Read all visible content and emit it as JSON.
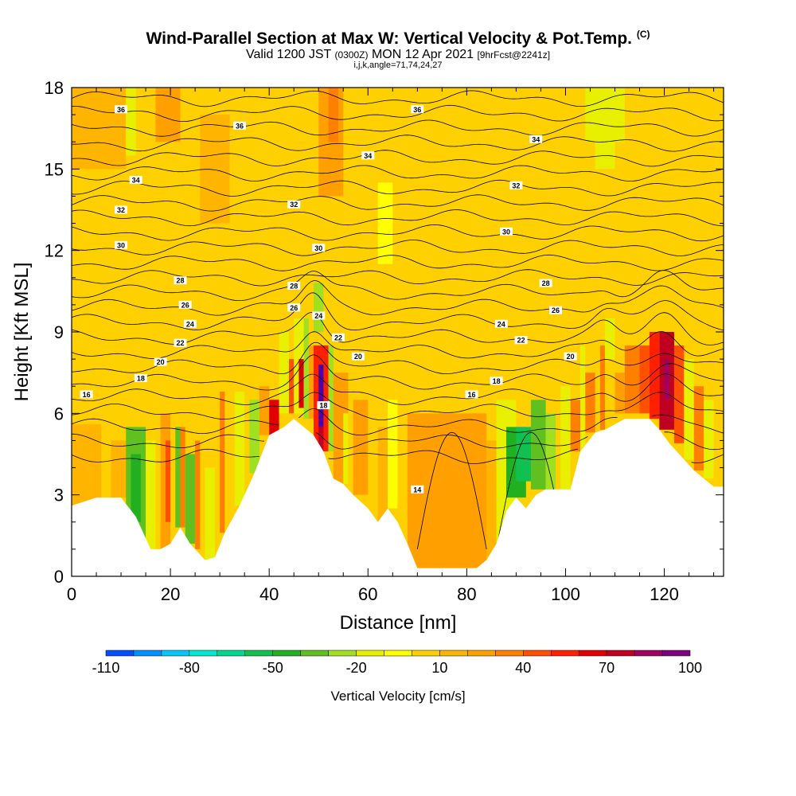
{
  "chart_data": {
    "type": "heatmap",
    "title": "Wind-Parallel Section at Max W: Vertical Velocity & Pot.Temp.",
    "title_tag": "(C)",
    "subtitle_main": "Valid 1200 JST",
    "subtitle_utc": "(0300Z)",
    "subtitle_date": "MON 12 Apr 2021",
    "subtitle_fcst": "[9hrFcst@2241z]",
    "subtitle2": "i,j,k,angle=71,74,24,27",
    "xlabel": "Distance [nm]",
    "ylabel": "Height [Kft MSL]",
    "xlim": [
      0,
      132
    ],
    "ylim": [
      0,
      18
    ],
    "x_ticks": [
      "0",
      "20",
      "40",
      "60",
      "80",
      "100",
      "120"
    ],
    "y_ticks": [
      "0",
      "3",
      "6",
      "9",
      "12",
      "15",
      "18"
    ],
    "colorbar": {
      "title": "Vertical Velocity [cm/s]",
      "tick_labels": [
        "-110",
        "-80",
        "-50",
        "-20",
        "10",
        "40",
        "70",
        "100"
      ],
      "colors": [
        "#0000ff",
        "#0050ff",
        "#0090ff",
        "#00c8ff",
        "#00e8d0",
        "#00d890",
        "#10c050",
        "#20b020",
        "#60c020",
        "#a0e020",
        "#e8f000",
        "#ffff00",
        "#ffd000",
        "#ffb400",
        "#ffa000",
        "#ff8000",
        "#ff5000",
        "#ff2000",
        "#e00000",
        "#c00020",
        "#a00060",
        "#800080",
        "#5000a0"
      ]
    },
    "terrain": [
      [
        0,
        2.6
      ],
      [
        5,
        2.9
      ],
      [
        10,
        2.9
      ],
      [
        13,
        2.2
      ],
      [
        16,
        1.0
      ],
      [
        18,
        1.0
      ],
      [
        20,
        1.2
      ],
      [
        22,
        1.8
      ],
      [
        24,
        1.2
      ],
      [
        25,
        1.0
      ],
      [
        27,
        0.6
      ],
      [
        29,
        0.7
      ],
      [
        31,
        1.6
      ],
      [
        34,
        2.6
      ],
      [
        37,
        3.8
      ],
      [
        40,
        5.2
      ],
      [
        43,
        5.5
      ],
      [
        45,
        5.8
      ],
      [
        47,
        5.5
      ],
      [
        49,
        5.2
      ],
      [
        51,
        4.6
      ],
      [
        53,
        3.6
      ],
      [
        55,
        3.4
      ],
      [
        57,
        3.0
      ],
      [
        60,
        2.5
      ],
      [
        62,
        2.0
      ],
      [
        64,
        2.5
      ],
      [
        66,
        2.0
      ],
      [
        68,
        1.2
      ],
      [
        70,
        0.3
      ],
      [
        82,
        0.3
      ],
      [
        84,
        0.6
      ],
      [
        86,
        1.2
      ],
      [
        88,
        2.4
      ],
      [
        90,
        2.9
      ],
      [
        92,
        2.5
      ],
      [
        94,
        3.0
      ],
      [
        96,
        3.2
      ],
      [
        101,
        3.2
      ],
      [
        103,
        4.6
      ],
      [
        106,
        5.3
      ],
      [
        108,
        5.4
      ],
      [
        110,
        5.6
      ],
      [
        112,
        5.8
      ],
      [
        117,
        5.8
      ],
      [
        119,
        5.4
      ],
      [
        121,
        4.9
      ],
      [
        124,
        4.3
      ],
      [
        126,
        3.9
      ],
      [
        128,
        3.6
      ],
      [
        130,
        3.3
      ],
      [
        132,
        3.3
      ]
    ],
    "theta_contours": [
      {
        "label": "36",
        "level": 17.2
      },
      {
        "label": "34",
        "level": 15.0
      },
      {
        "label": "32",
        "level": 13.4
      },
      {
        "label": "30",
        "level": 12.0
      },
      {
        "label": "28",
        "level": 10.8
      },
      {
        "label": "26",
        "level": 9.9
      },
      {
        "label": "24",
        "level": 9.4
      },
      {
        "label": "22",
        "level": 8.8
      },
      {
        "label": "20",
        "level": 8.0
      },
      {
        "label": "18",
        "level": 7.3
      },
      {
        "label": "16",
        "level": 6.6
      },
      {
        "label": "14",
        "level": 4.3
      }
    ],
    "contour_labels": [
      {
        "text": "36",
        "x": 10,
        "y": 17.2
      },
      {
        "text": "36",
        "x": 34,
        "y": 16.6
      },
      {
        "text": "36",
        "x": 70,
        "y": 17.2
      },
      {
        "text": "34",
        "x": 13,
        "y": 14.6
      },
      {
        "text": "34",
        "x": 60,
        "y": 15.5
      },
      {
        "text": "34",
        "x": 94,
        "y": 16.1
      },
      {
        "text": "32",
        "x": 10,
        "y": 13.5
      },
      {
        "text": "32",
        "x": 45,
        "y": 13.7
      },
      {
        "text": "32",
        "x": 90,
        "y": 14.4
      },
      {
        "text": "30",
        "x": 10,
        "y": 12.2
      },
      {
        "text": "30",
        "x": 50,
        "y": 12.1
      },
      {
        "text": "30",
        "x": 88,
        "y": 12.7
      },
      {
        "text": "28",
        "x": 22,
        "y": 10.9
      },
      {
        "text": "28",
        "x": 45,
        "y": 10.7
      },
      {
        "text": "28",
        "x": 96,
        "y": 10.8
      },
      {
        "text": "26",
        "x": 23,
        "y": 10.0
      },
      {
        "text": "26",
        "x": 45,
        "y": 9.9
      },
      {
        "text": "26",
        "x": 98,
        "y": 9.8
      },
      {
        "text": "24",
        "x": 24,
        "y": 9.3
      },
      {
        "text": "24",
        "x": 50,
        "y": 9.6
      },
      {
        "text": "24",
        "x": 87,
        "y": 9.3
      },
      {
        "text": "22",
        "x": 22,
        "y": 8.6
      },
      {
        "text": "22",
        "x": 54,
        "y": 8.8
      },
      {
        "text": "22",
        "x": 91,
        "y": 8.7
      },
      {
        "text": "20",
        "x": 18,
        "y": 7.9
      },
      {
        "text": "20",
        "x": 58,
        "y": 8.1
      },
      {
        "text": "20",
        "x": 101,
        "y": 8.1
      },
      {
        "text": "18",
        "x": 14,
        "y": 7.3
      },
      {
        "text": "18",
        "x": 51,
        "y": 6.3
      },
      {
        "text": "18",
        "x": 86,
        "y": 7.2
      },
      {
        "text": "16",
        "x": 3,
        "y": 6.7
      },
      {
        "text": "16",
        "x": 81,
        "y": 6.7
      },
      {
        "text": "14",
        "x": 70,
        "y": 3.2
      }
    ],
    "w_cells": [
      {
        "x0": 0,
        "x1": 132,
        "y0": 0,
        "y1": 18,
        "w": 5
      },
      {
        "x0": 0,
        "x1": 11,
        "y0": 15,
        "y1": 18,
        "w": 10
      },
      {
        "x0": 11,
        "x1": 13,
        "y0": 15.5,
        "y1": 18,
        "w": -15
      },
      {
        "x0": 17,
        "x1": 22,
        "y0": 16,
        "y1": 18,
        "w": 20
      },
      {
        "x0": 26,
        "x1": 32,
        "y0": 13,
        "y1": 17,
        "w": 15
      },
      {
        "x0": 50,
        "x1": 55,
        "y0": 14,
        "y1": 18,
        "w": 20
      },
      {
        "x0": 52,
        "x1": 54,
        "y0": 16,
        "y1": 18,
        "w": 30
      },
      {
        "x0": 62,
        "x1": 65,
        "y0": 11.5,
        "y1": 14.5,
        "w": -10
      },
      {
        "x0": 104,
        "x1": 112,
        "y0": 16,
        "y1": 18,
        "w": -12
      },
      {
        "x0": 106,
        "x1": 110,
        "y0": 15,
        "y1": 17,
        "w": -18
      },
      {
        "x0": 0,
        "x1": 6,
        "y0": 2.6,
        "y1": 5.6,
        "w": 15
      },
      {
        "x0": 8,
        "x1": 12,
        "y0": 2.9,
        "y1": 5.0,
        "w": 10
      },
      {
        "x0": 11,
        "x1": 15,
        "y0": 1.0,
        "y1": 5.5,
        "w": -40
      },
      {
        "x0": 12,
        "x1": 14,
        "y0": 2.0,
        "y1": 4.5,
        "w": -45
      },
      {
        "x0": 15,
        "x1": 17,
        "y0": 1.0,
        "y1": 5.0,
        "w": -20
      },
      {
        "x0": 18,
        "x1": 20,
        "y0": 1.0,
        "y1": 6.0,
        "w": 25
      },
      {
        "x0": 19,
        "x1": 20,
        "y0": 2.0,
        "y1": 5.0,
        "w": 40
      },
      {
        "x0": 21,
        "x1": 22,
        "y0": 1.8,
        "y1": 5.5,
        "w": -35
      },
      {
        "x0": 22,
        "x1": 23,
        "y0": 1.8,
        "y1": 5.5,
        "w": 30
      },
      {
        "x0": 23,
        "x1": 25,
        "y0": 1.2,
        "y1": 4.5,
        "w": -40
      },
      {
        "x0": 25,
        "x1": 26,
        "y0": 1.0,
        "y1": 5.0,
        "w": 35
      },
      {
        "x0": 27,
        "x1": 29,
        "y0": 0.6,
        "y1": 4.0,
        "w": -20
      },
      {
        "x0": 30,
        "x1": 31,
        "y0": 1.6,
        "y1": 6.8,
        "w": 30
      },
      {
        "x0": 33,
        "x1": 35,
        "y0": 2.6,
        "y1": 6.8,
        "w": -20
      },
      {
        "x0": 36,
        "x1": 38,
        "y0": 3.8,
        "y1": 6.5,
        "w": -30
      },
      {
        "x0": 38,
        "x1": 40,
        "y0": 5.2,
        "y1": 7.0,
        "w": 25
      },
      {
        "x0": 40,
        "x1": 42,
        "y0": 5.2,
        "y1": 6.5,
        "w": 60
      },
      {
        "x0": 42,
        "x1": 44,
        "y0": 6,
        "y1": 9,
        "w": -15
      },
      {
        "x0": 44,
        "x1": 45,
        "y0": 6,
        "y1": 8,
        "w": 40
      },
      {
        "x0": 45,
        "x1": 47,
        "y0": 6,
        "y1": 9.5,
        "w": -20
      },
      {
        "x0": 46,
        "x1": 47,
        "y0": 6.2,
        "y1": 8.0,
        "w": 60
      },
      {
        "x0": 47,
        "x1": 48,
        "y0": 5.8,
        "y1": 9.5,
        "w": -30
      },
      {
        "x0": 48,
        "x1": 49,
        "y0": 5.8,
        "y1": 8.5,
        "w": 20
      },
      {
        "x0": 49,
        "x1": 52,
        "y0": 4.6,
        "y1": 8.5,
        "w": 55
      },
      {
        "x0": 50,
        "x1": 51,
        "y0": 5.5,
        "y1": 7.8,
        "w": 100
      },
      {
        "x0": 50,
        "x1": 51,
        "y0": 4.6,
        "y1": 5.5,
        "w": 70
      },
      {
        "x0": 52,
        "x1": 53,
        "y0": 4.6,
        "y1": 8.5,
        "w": -25
      },
      {
        "x0": 49,
        "x1": 51,
        "y0": 9.0,
        "y1": 10.8,
        "w": -25
      },
      {
        "x0": 53,
        "x1": 56,
        "y0": 3.4,
        "y1": 7.5,
        "w": 25
      },
      {
        "x0": 55,
        "x1": 56,
        "y0": 3.4,
        "y1": 6.0,
        "w": -15
      },
      {
        "x0": 57,
        "x1": 60,
        "y0": 3.0,
        "y1": 6.5,
        "w": 20
      },
      {
        "x0": 62,
        "x1": 64,
        "y0": 2.0,
        "y1": 5.5,
        "w": 15
      },
      {
        "x0": 64,
        "x1": 66,
        "y0": 2.5,
        "y1": 6.5,
        "w": -8
      },
      {
        "x0": 68,
        "x1": 84,
        "y0": 0.3,
        "y1": 6.0,
        "w": 22
      },
      {
        "x0": 73,
        "x1": 80,
        "y0": 0.8,
        "y1": 5.0,
        "w": 28
      },
      {
        "x0": 84,
        "x1": 86,
        "y0": 0.6,
        "y1": 5.0,
        "w": 15
      },
      {
        "x0": 86,
        "x1": 90,
        "y0": 1.2,
        "y1": 6.5,
        "w": -20
      },
      {
        "x0": 88,
        "x1": 92,
        "y0": 2.9,
        "y1": 5.5,
        "w": -45
      },
      {
        "x0": 90,
        "x1": 93,
        "y0": 3.5,
        "y1": 5.5,
        "w": -55
      },
      {
        "x0": 93,
        "x1": 96,
        "y0": 3.2,
        "y1": 6.5,
        "w": -35
      },
      {
        "x0": 96,
        "x1": 98,
        "y0": 3.2,
        "y1": 6.0,
        "w": -25
      },
      {
        "x0": 99,
        "x1": 101,
        "y0": 3.2,
        "y1": 7.0,
        "w": -15
      },
      {
        "x0": 101,
        "x1": 103,
        "y0": 4.6,
        "y1": 6.5,
        "w": 30
      },
      {
        "x0": 103,
        "x1": 104,
        "y0": 4.6,
        "y1": 8.5,
        "w": -20
      },
      {
        "x0": 104,
        "x1": 106,
        "y0": 5.3,
        "y1": 7.5,
        "w": 30
      },
      {
        "x0": 107,
        "x1": 108,
        "y0": 5.4,
        "y1": 8.5,
        "w": 35
      },
      {
        "x0": 108,
        "x1": 110,
        "y0": 8.0,
        "y1": 9.5,
        "w": -20
      },
      {
        "x0": 110,
        "x1": 112,
        "y0": 6.0,
        "y1": 7.5,
        "w": 25
      },
      {
        "x0": 112,
        "x1": 115,
        "y0": 6.0,
        "y1": 8.5,
        "w": 30
      },
      {
        "x0": 115,
        "x1": 117,
        "y0": 6.0,
        "y1": 8.5,
        "w": 45
      },
      {
        "x0": 117,
        "x1": 119,
        "y0": 5.8,
        "y1": 9.0,
        "w": 55
      },
      {
        "x0": 119,
        "x1": 122,
        "y0": 5.4,
        "y1": 9.0,
        "w": 70
      },
      {
        "x0": 120,
        "x1": 121,
        "y0": 6.5,
        "y1": 8.0,
        "w": 80
      },
      {
        "x0": 122,
        "x1": 124,
        "y0": 4.9,
        "y1": 8.5,
        "w": 40
      },
      {
        "x0": 124,
        "x1": 126,
        "y0": 4.3,
        "y1": 8.0,
        "w": -20
      },
      {
        "x0": 126,
        "x1": 128,
        "y0": 3.9,
        "y1": 7.0,
        "w": 35
      },
      {
        "x0": 128,
        "x1": 130,
        "y0": 3.6,
        "y1": 6.5,
        "w": -12
      }
    ]
  }
}
